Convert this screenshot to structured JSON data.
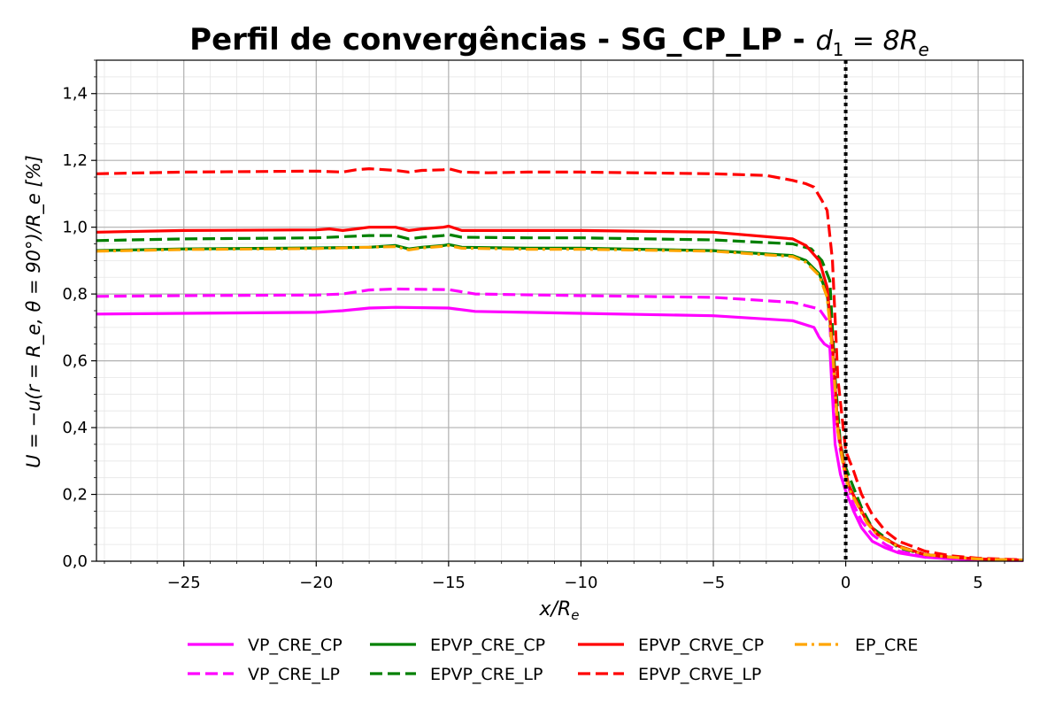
{
  "chart_data": {
    "type": "line",
    "title_main": "Perfil de convergências - SG_CP_LP - ",
    "title_math": "d",
    "title_math_sub": "1",
    "title_math_rest": " = 8R",
    "title_math_rest_sub": "e",
    "xlabel": "x/R",
    "xlabel_sub": "e",
    "ylabel": "U = −u(r = R_e, θ = 90°)/R_e [%]",
    "xlim": [
      -28.3,
      6.7
    ],
    "ylim": [
      0.0,
      1.5
    ],
    "x_ticks": [
      -25,
      -20,
      -15,
      -10,
      -5,
      0,
      5
    ],
    "x_tick_labels": [
      "−25",
      "−20",
      "−15",
      "−10",
      "−5",
      "0",
      "5"
    ],
    "y_ticks": [
      0.0,
      0.2,
      0.4,
      0.6,
      0.8,
      1.0,
      1.2,
      1.4
    ],
    "y_tick_labels": [
      "0,0",
      "0,2",
      "0,4",
      "0,6",
      "0,8",
      "1,0",
      "1,2",
      "1,4"
    ],
    "grid": "major and minor",
    "vertical_reference_line": {
      "x": 0,
      "style": "dotted",
      "color": "#000000"
    },
    "legend_position": "bottom-center",
    "series": [
      {
        "name": "VP_CRE_CP",
        "color": "#ff00ff",
        "dash": "solid",
        "x": [
          -28.3,
          -25,
          -20,
          -19,
          -18,
          -17,
          -15,
          -14,
          -10,
          -5,
          -2,
          -1.2,
          -1.0,
          -0.8,
          -0.6,
          -0.4,
          -0.2,
          0,
          0.3,
          0.6,
          1.0,
          1.5,
          2,
          3,
          4,
          5,
          6.7
        ],
        "y": [
          0.74,
          0.742,
          0.745,
          0.75,
          0.758,
          0.76,
          0.758,
          0.748,
          0.742,
          0.735,
          0.72,
          0.7,
          0.67,
          0.65,
          0.64,
          0.35,
          0.26,
          0.21,
          0.15,
          0.1,
          0.06,
          0.04,
          0.025,
          0.012,
          0.007,
          0.004,
          0.002
        ]
      },
      {
        "name": "VP_CRE_LP",
        "color": "#ff00ff",
        "dash": "dashed",
        "x": [
          -28.3,
          -25,
          -20,
          -19,
          -18,
          -17,
          -15,
          -14,
          -10,
          -5,
          -2,
          -1.0,
          -0.6,
          -0.4,
          -0.2,
          0,
          0.3,
          0.6,
          1.0,
          1.5,
          2,
          3,
          4,
          5,
          6.7
        ],
        "y": [
          0.793,
          0.795,
          0.797,
          0.8,
          0.812,
          0.815,
          0.813,
          0.8,
          0.795,
          0.79,
          0.775,
          0.755,
          0.71,
          0.45,
          0.33,
          0.25,
          0.17,
          0.12,
          0.08,
          0.05,
          0.03,
          0.015,
          0.008,
          0.004,
          0.002
        ]
      },
      {
        "name": "EPVP_CRE_CP",
        "color": "#008000",
        "dash": "solid",
        "x": [
          -28.3,
          -25,
          -20,
          -18,
          -17,
          -16.5,
          -16,
          -15.2,
          -15,
          -14.5,
          -12,
          -10,
          -5,
          -2,
          -1.5,
          -1.0,
          -0.7,
          -0.5,
          -0.3,
          -0.1,
          0.1,
          0.4,
          0.8,
          1.2,
          2,
          3,
          4,
          5,
          6.7
        ],
        "y": [
          0.93,
          0.935,
          0.938,
          0.94,
          0.945,
          0.935,
          0.94,
          0.945,
          0.948,
          0.94,
          0.937,
          0.937,
          0.93,
          0.915,
          0.9,
          0.86,
          0.8,
          0.65,
          0.4,
          0.3,
          0.23,
          0.18,
          0.12,
          0.08,
          0.045,
          0.02,
          0.012,
          0.007,
          0.003
        ]
      },
      {
        "name": "EPVP_CRE_LP",
        "color": "#008000",
        "dash": "dashed",
        "x": [
          -28.3,
          -25,
          -20,
          -18,
          -17,
          -16.5,
          -16,
          -15.2,
          -15,
          -14.5,
          -12,
          -10,
          -5,
          -2,
          -1.3,
          -0.9,
          -0.6,
          -0.4,
          -0.2,
          0,
          0.3,
          0.6,
          1.0,
          1.5,
          2,
          3,
          4,
          5,
          6.7
        ],
        "y": [
          0.96,
          0.965,
          0.968,
          0.975,
          0.975,
          0.965,
          0.97,
          0.975,
          0.978,
          0.97,
          0.968,
          0.968,
          0.962,
          0.95,
          0.935,
          0.9,
          0.84,
          0.55,
          0.35,
          0.28,
          0.22,
          0.16,
          0.1,
          0.07,
          0.04,
          0.02,
          0.012,
          0.007,
          0.003
        ]
      },
      {
        "name": "EPVP_CRVE_CP",
        "color": "#ff0000",
        "dash": "solid",
        "x": [
          -28.3,
          -25,
          -20,
          -19.5,
          -19,
          -18.5,
          -18,
          -17,
          -16.5,
          -16,
          -15.2,
          -15,
          -14.5,
          -12,
          -10,
          -5,
          -2,
          -1.5,
          -1.0,
          -0.7,
          -0.5,
          -0.3,
          -0.1,
          0.1,
          0.4,
          0.8,
          1.2,
          2,
          3,
          4,
          5,
          6.7
        ],
        "y": [
          0.985,
          0.99,
          0.992,
          0.995,
          0.99,
          0.995,
          1.0,
          1.0,
          0.99,
          0.995,
          1.0,
          1.003,
          0.99,
          0.99,
          0.99,
          0.985,
          0.965,
          0.945,
          0.9,
          0.82,
          0.65,
          0.4,
          0.3,
          0.23,
          0.18,
          0.12,
          0.08,
          0.045,
          0.02,
          0.012,
          0.007,
          0.003
        ]
      },
      {
        "name": "EPVP_CRVE_LP",
        "color": "#ff0000",
        "dash": "dashed",
        "x": [
          -28.3,
          -25,
          -20,
          -19,
          -18.5,
          -18,
          -17,
          -16.5,
          -16,
          -15.2,
          -15,
          -14.5,
          -13.5,
          -12,
          -10,
          -5,
          -3,
          -2,
          -1.5,
          -1.2,
          -0.9,
          -0.7,
          -0.5,
          -0.3,
          0,
          0.3,
          0.6,
          1.0,
          1.5,
          2,
          3,
          4,
          5,
          6.7
        ],
        "y": [
          1.16,
          1.165,
          1.168,
          1.165,
          1.172,
          1.175,
          1.17,
          1.165,
          1.17,
          1.172,
          1.175,
          1.165,
          1.163,
          1.165,
          1.165,
          1.16,
          1.155,
          1.14,
          1.13,
          1.12,
          1.08,
          1.05,
          0.9,
          0.55,
          0.33,
          0.27,
          0.2,
          0.14,
          0.09,
          0.06,
          0.03,
          0.016,
          0.009,
          0.004
        ]
      },
      {
        "name": "EP_CRE",
        "color": "#ffa500",
        "dash": "dashdot",
        "x": [
          -28.3,
          -25,
          -20,
          -18,
          -17,
          -16.5,
          -16,
          -15.2,
          -15,
          -14.5,
          -12,
          -10,
          -5,
          -2,
          -1.5,
          -1.0,
          -0.7,
          -0.5,
          -0.3,
          -0.1,
          0.1,
          0.4,
          0.8,
          1.2,
          2,
          3,
          4,
          5,
          6.7
        ],
        "y": [
          0.928,
          0.933,
          0.936,
          0.94,
          0.942,
          0.932,
          0.938,
          0.943,
          0.945,
          0.937,
          0.934,
          0.934,
          0.928,
          0.912,
          0.895,
          0.855,
          0.79,
          0.63,
          0.39,
          0.29,
          0.22,
          0.175,
          0.115,
          0.078,
          0.043,
          0.02,
          0.012,
          0.007,
          0.003
        ]
      }
    ]
  }
}
